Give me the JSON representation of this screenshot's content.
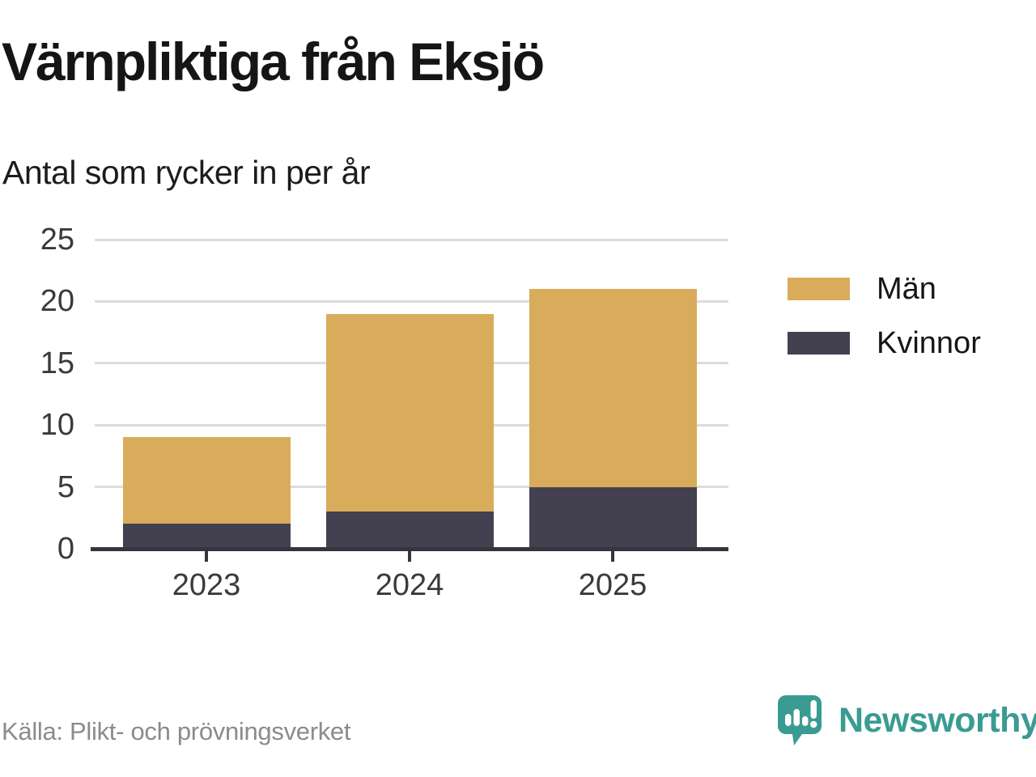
{
  "title": "Värnpliktiga från Eksjö",
  "subtitle": "Antal som rycker in per år",
  "source": "Källa: Plikt- och prövningsverket",
  "brand": {
    "name": "Newsworthy",
    "color": "#3a9b92",
    "icon": "speech-bubble-bar-chart-exclamation"
  },
  "colors": {
    "men": "#d9ac5b",
    "women": "#434050",
    "grid": "#dcdcdf",
    "axis": "#36343e",
    "tick_label": "#3a3a3a",
    "heading": "#151515",
    "source_text": "#8b8b8b"
  },
  "chart_data": {
    "type": "bar",
    "stacked": true,
    "title": "Värnpliktiga från Eksjö",
    "subtitle": "Antal som rycker in per år",
    "categories": [
      "2023",
      "2024",
      "2025"
    ],
    "series": [
      {
        "name": "Män",
        "color_key": "men",
        "values": [
          7,
          16,
          16
        ]
      },
      {
        "name": "Kvinnor",
        "color_key": "women",
        "values": [
          2,
          3,
          5
        ]
      }
    ],
    "stack_order_bottom_to_top": [
      "Kvinnor",
      "Män"
    ],
    "totals": [
      9,
      19,
      21
    ],
    "xlabel": "",
    "ylabel": "",
    "ylim": [
      0,
      25
    ],
    "yticks": [
      0,
      5,
      10,
      15,
      20,
      25
    ],
    "grid": true,
    "legend_position": "right",
    "legend": [
      "Män",
      "Kvinnor"
    ]
  }
}
